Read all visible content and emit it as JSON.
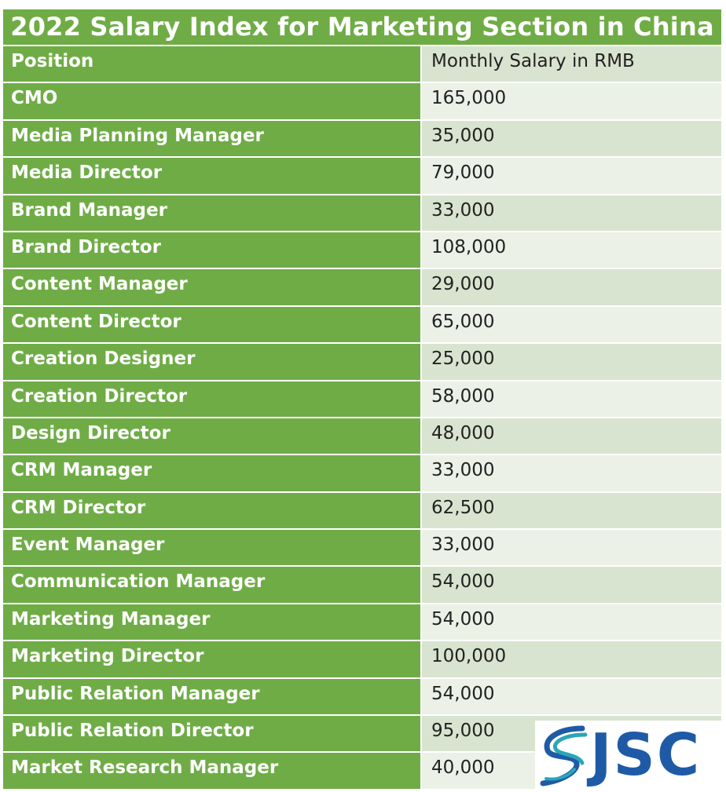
{
  "title": "2022 Salary Index for Marketing Section in China",
  "table": {
    "header": {
      "position": "Position",
      "salary": "Monthly Salary in RMB"
    },
    "rows": [
      {
        "position": "CMO",
        "salary": "165,000"
      },
      {
        "position": "Media Planning Manager",
        "salary": "35,000"
      },
      {
        "position": "Media Director",
        "salary": "79,000"
      },
      {
        "position": "Brand Manager",
        "salary": "33,000"
      },
      {
        "position": "Brand Director",
        "salary": "108,000"
      },
      {
        "position": "Content Manager",
        "salary": "29,000"
      },
      {
        "position": "Content Director",
        "salary": "65,000"
      },
      {
        "position": "Creation Designer",
        "salary": "25,000"
      },
      {
        "position": "Creation Director",
        "salary": "58,000"
      },
      {
        "position": "Design Director",
        "salary": "48,000"
      },
      {
        "position": "CRM Manager",
        "salary": "33,000"
      },
      {
        "position": "CRM Director",
        "salary": "62,500"
      },
      {
        "position": "Event Manager",
        "salary": "33,000"
      },
      {
        "position": "Communication Manager",
        "salary": "54,000"
      },
      {
        "position": "Marketing Manager",
        "salary": "54,000"
      },
      {
        "position": "Marketing Director",
        "salary": "100,000"
      },
      {
        "position": "Public Relation Manager",
        "salary": "54,000"
      },
      {
        "position": "Public Relation Director",
        "salary": "95,000"
      },
      {
        "position": "Market Research Manager",
        "salary": "40,000"
      }
    ]
  },
  "logo": {
    "text": "JSC",
    "icon": "jsc-swoosh-icon"
  },
  "colors": {
    "header_green": "#6fac46",
    "band_dark": "#d8e4cf",
    "band_light": "#ebf1e6",
    "logo_blue": "#1f5aa6",
    "logo_teal": "#2aa6b8"
  }
}
